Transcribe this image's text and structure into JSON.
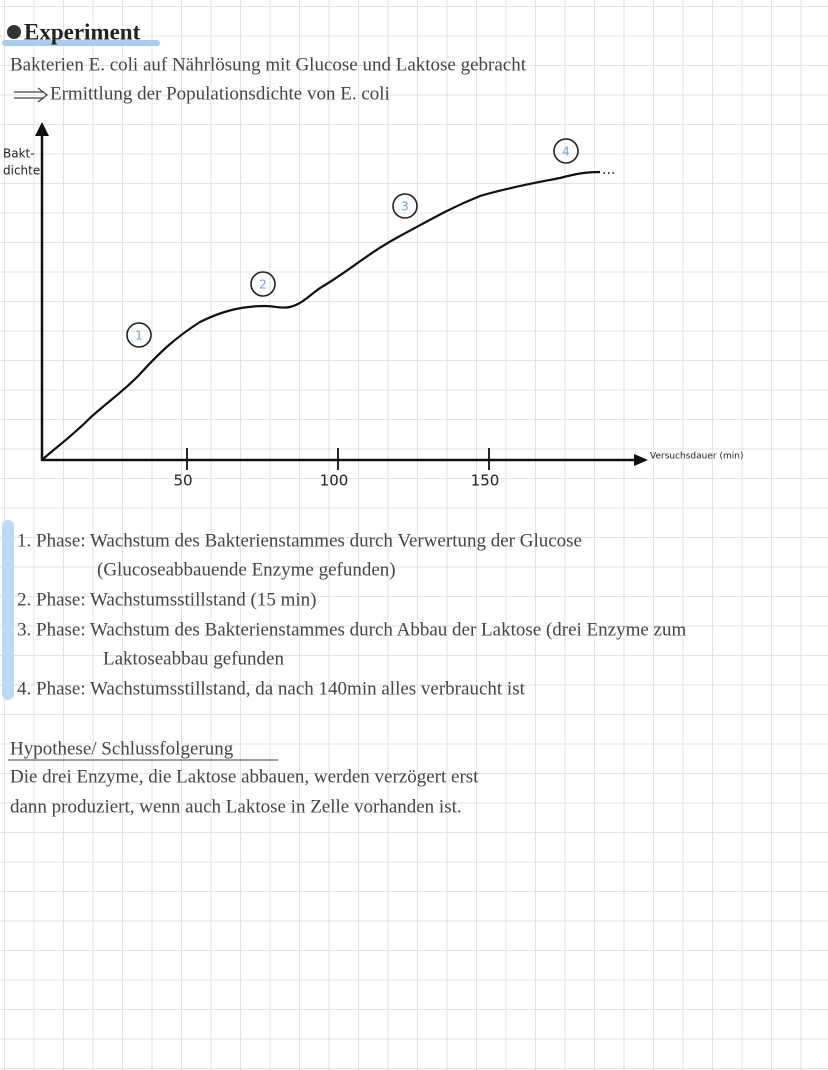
{
  "header": {
    "title": "Experiment",
    "lines": [
      "Bakterien E. coli auf Nährlösung mit Glucose und Laktose gebracht",
      "Ermittlung der Populationsdichte von E. coli"
    ]
  },
  "chart_data": {
    "type": "line",
    "ylabel": [
      "Bakt-",
      "dichte"
    ],
    "xlabel": "Versuchsdauer (min)",
    "xlim": [
      0,
      200
    ],
    "xticks": [
      50,
      100,
      150
    ],
    "phase_labels": [
      "1",
      "2",
      "3",
      "4"
    ],
    "continuation": "..."
  },
  "phases": [
    [
      "1. Phase: Wachstum des Bakterienstammes durch Verwertung der Glucose",
      "(Glucoseabbauende Enzyme gefunden)"
    ],
    [
      "2. Phase: Wachstumsstillstand (15 min)"
    ],
    [
      "3. Phase: Wachstum des Bakterienstammes durch Abbau der Laktose (drei Enzyme zum",
      "Laktoseabbau gefunden"
    ],
    [
      "4. Phase: Wachstumsstillstand, da nach 140min alles verbraucht ist"
    ]
  ],
  "conclusion": {
    "heading": "Hypothese/ Schlussfolgerung",
    "lines": [
      "Die drei Enzyme, die Laktose abbauen, werden verzögert erst",
      "dann produziert, wenn auch Laktose in Zelle vorhanden ist."
    ]
  }
}
